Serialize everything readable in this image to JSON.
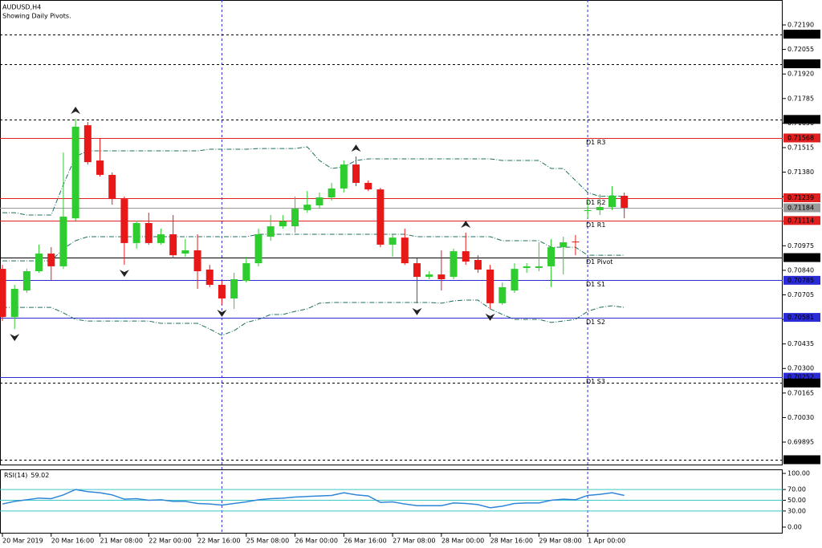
{
  "chart_data": [
    {
      "type": "candlestick",
      "title": "AUDUSD,H4",
      "subtitle": "Showing Daily Pivots.",
      "categories": [
        "20 Mar 2019",
        null,
        null,
        null,
        "20 Mar 16:00",
        null,
        null,
        null,
        "21 Mar 08:00",
        null,
        null,
        null,
        "22 Mar 00:00",
        null,
        null,
        null,
        "22 Mar 16:00",
        null,
        null,
        null,
        "25 Mar 08:00",
        null,
        null,
        null,
        "26 Mar 00:00",
        null,
        null,
        null,
        "26 Mar 16:00",
        null,
        null,
        null,
        "27 Mar 08:00",
        null,
        null,
        null,
        "28 Mar 00:00",
        null,
        null,
        null,
        "28 Mar 16:00",
        null,
        null,
        null,
        "29 Mar 08:00",
        null,
        null,
        null,
        "1 Apr 00:00",
        null,
        null,
        null
      ],
      "open": [
        0.70848,
        0.70583,
        0.70729,
        0.70835,
        0.70932,
        0.70862,
        0.71126,
        0.71638,
        0.71444,
        0.71365,
        0.71232,
        0.7099,
        0.711,
        0.7099,
        0.71038,
        0.70932,
        0.7095,
        0.70844,
        0.7076,
        0.70685,
        0.70782,
        0.70879,
        0.71025,
        0.71082,
        0.71082,
        0.71171,
        0.71197,
        0.71241,
        0.7129,
        0.71422,
        0.71321,
        0.71285,
        0.70981,
        0.7102,
        0.70879,
        0.70804,
        0.70817,
        0.70804,
        0.70945,
        0.70897,
        0.70844,
        0.70659,
        0.70729,
        0.70853,
        0.70853,
        0.70862,
        0.70967,
        0.70998,
        0.71166,
        0.71171,
        0.71188,
        0.7125
      ],
      "high": [
        0.7087,
        0.7076,
        0.70848,
        0.70981,
        0.70967,
        0.71488,
        0.71674,
        0.71656,
        0.71568,
        0.71378,
        0.71246,
        0.71113,
        0.71157,
        0.71069,
        0.71144,
        0.71012,
        0.71038,
        0.7087,
        0.70782,
        0.70826,
        0.70915,
        0.71069,
        0.71144,
        0.71144,
        0.71246,
        0.71276,
        0.71268,
        0.71321,
        0.71444,
        0.71466,
        0.71334,
        0.71294,
        0.71038,
        0.71069,
        0.70906,
        0.70835,
        0.7095,
        0.70959,
        0.71047,
        0.70923,
        0.7087,
        0.70773,
        0.70879,
        0.70879,
        0.70994,
        0.71012,
        0.71025,
        0.71034,
        0.71232,
        0.71259,
        0.71303,
        0.71268
      ],
      "low": [
        0.70561,
        0.70517,
        0.70716,
        0.70826,
        0.70782,
        0.70848,
        0.71113,
        0.71422,
        0.71356,
        0.71201,
        0.7087,
        0.70959,
        0.70981,
        0.70981,
        0.70906,
        0.70915,
        0.70738,
        0.70747,
        0.7065,
        0.70628,
        0.70773,
        0.70862,
        0.71003,
        0.71069,
        0.71047,
        0.71157,
        0.71179,
        0.71223,
        0.71268,
        0.71303,
        0.71276,
        0.70967,
        0.70915,
        0.7087,
        0.70659,
        0.70791,
        0.70729,
        0.70791,
        0.7087,
        0.70826,
        0.70628,
        0.7065,
        0.70716,
        0.70826,
        0.70835,
        0.70747,
        0.70817,
        0.70923,
        0.71126,
        0.71144,
        0.71171,
        0.71126
      ],
      "close": [
        0.70583,
        0.70738,
        0.70835,
        0.70932,
        0.70862,
        0.71135,
        0.7163,
        0.71435,
        0.71365,
        0.71232,
        0.7099,
        0.711,
        0.7099,
        0.71038,
        0.70923,
        0.7095,
        0.70835,
        0.7076,
        0.70685,
        0.70791,
        0.70879,
        0.71038,
        0.71082,
        0.71109,
        0.71179,
        0.71201,
        0.71241,
        0.7129,
        0.71422,
        0.71321,
        0.71285,
        0.70981,
        0.7102,
        0.70879,
        0.70804,
        0.70817,
        0.70791,
        0.70945,
        0.70888,
        0.70844,
        0.70659,
        0.70747,
        0.70848,
        0.70862,
        0.70862,
        0.70967,
        0.70994,
        0.70994,
        0.71171,
        0.71188,
        0.7125,
        0.71184
      ],
      "up_color": "#2ecc2e",
      "down_color": "#e81818",
      "envelopes": {
        "color": "#1f6f5f",
        "upper": [
          0.71157,
          0.71157,
          0.71144,
          0.71144,
          0.71144,
          0.71312,
          0.71466,
          0.71497,
          0.71497,
          0.71497,
          0.71497,
          0.71497,
          0.71497,
          0.71497,
          0.71497,
          0.71497,
          0.71497,
          0.71506,
          0.71506,
          0.71506,
          0.71506,
          0.7151,
          0.7151,
          0.7151,
          0.7151,
          0.71519,
          0.71444,
          0.714,
          0.71409,
          0.71444,
          0.71453,
          0.71453,
          0.71453,
          0.71453,
          0.71453,
          0.71453,
          0.71453,
          0.71453,
          0.71453,
          0.71453,
          0.71453,
          0.71444,
          0.71444,
          0.71444,
          0.71444,
          0.714,
          0.714,
          0.71334,
          0.71268,
          0.71246,
          0.7125,
          0.71246
        ],
        "middle": [
          0.70892,
          0.70892,
          0.70892,
          0.70892,
          0.70892,
          0.70959,
          0.71003,
          0.71025,
          0.71025,
          0.71025,
          0.71025,
          0.71025,
          0.71025,
          0.71025,
          0.71025,
          0.71025,
          0.71025,
          0.71025,
          0.71025,
          0.71025,
          0.71025,
          0.71038,
          0.71038,
          0.71038,
          0.71038,
          0.71038,
          0.71038,
          0.71038,
          0.71038,
          0.71038,
          0.71038,
          0.71038,
          0.71038,
          0.71038,
          0.71025,
          0.71025,
          0.71025,
          0.71025,
          0.71025,
          0.71025,
          0.71025,
          0.71003,
          0.71003,
          0.71003,
          0.71003,
          0.70967,
          0.70967,
          0.70967,
          0.70923,
          0.70923,
          0.70923,
          0.70923
        ],
        "lower": [
          0.70636,
          0.70636,
          0.70636,
          0.70636,
          0.70636,
          0.70606,
          0.7057,
          0.70561,
          0.70561,
          0.70561,
          0.70561,
          0.70561,
          0.70561,
          0.70548,
          0.70548,
          0.70548,
          0.70548,
          0.70517,
          0.70482,
          0.70508,
          0.70553,
          0.7057,
          0.70597,
          0.70597,
          0.70614,
          0.70628,
          0.70659,
          0.70663,
          0.70663,
          0.70663,
          0.70663,
          0.70663,
          0.70663,
          0.70663,
          0.70663,
          0.70663,
          0.70659,
          0.70672,
          0.70676,
          0.70676,
          0.70628,
          0.70597,
          0.7057,
          0.7057,
          0.7057,
          0.70553,
          0.70561,
          0.7057,
          0.70614,
          0.70636,
          0.70645,
          0.70636
        ]
      },
      "fractals": {
        "up": [
          6,
          29,
          38
        ],
        "down": [
          1,
          10,
          18,
          34,
          40
        ]
      },
      "separators": [
        18,
        48
      ],
      "ylim": [
        0.69767,
        0.72327
      ],
      "yticks": [
        {
          "value": 0.69895,
          "label": "0.69895"
        },
        {
          "value": 0.7003,
          "label": "0.70030"
        },
        {
          "value": 0.70165,
          "label": "0.70165"
        },
        {
          "value": 0.703,
          "label": "0.70300"
        },
        {
          "value": 0.70435,
          "label": "0.70435"
        },
        {
          "value": 0.7057,
          "label": "0.70570"
        },
        {
          "value": 0.70705,
          "label": "0.70705"
        },
        {
          "value": 0.7084,
          "label": "0.70840"
        },
        {
          "value": 0.70975,
          "label": "0.70975"
        },
        {
          "value": 0.7111,
          "label": "0.71110"
        },
        {
          "value": 0.71245,
          "label": "0.71245"
        },
        {
          "value": 0.7138,
          "label": "0.71380"
        },
        {
          "value": 0.71515,
          "label": "0.71515"
        },
        {
          "value": 0.7165,
          "label": "0.71650"
        },
        {
          "value": 0.71785,
          "label": "0.71785"
        },
        {
          "value": 0.7192,
          "label": "0.71920"
        },
        {
          "value": 0.72055,
          "label": "0.72055"
        },
        {
          "value": 0.7219,
          "label": "0.72190"
        }
      ],
      "hlines": [
        {
          "value": 0.72139,
          "label": "0.72139",
          "color": "#000000",
          "style": "dashed"
        },
        {
          "value": 0.71976,
          "label": "0.71976",
          "color": "#000000",
          "style": "dashed"
        },
        {
          "value": 0.7167,
          "label": "0.71670",
          "color": "#000000",
          "style": "dashed"
        },
        {
          "value": 0.71568,
          "label": "0.71568",
          "name": "D1 R3",
          "color": "#e02020",
          "style": "solid"
        },
        {
          "value": 0.71239,
          "label": "0.71239",
          "name": "D1 R2",
          "color": "#e02020",
          "style": "solid"
        },
        {
          "value": 0.71184,
          "label": "0.71184",
          "color": "#9a9a9a",
          "style": "solid"
        },
        {
          "value": 0.71114,
          "label": "0.71114",
          "name": "D1 R1",
          "color": "#e02020",
          "style": "solid"
        },
        {
          "value": 0.7091,
          "label": "0.70910",
          "name": "D1 Pivot",
          "color": "#000000",
          "style": "solid"
        },
        {
          "value": 0.70785,
          "label": "0.70785",
          "name": "D1 S1",
          "color": "#2b2bd6",
          "style": "solid"
        },
        {
          "value": 0.70581,
          "label": "0.70581",
          "name": "D1 S2",
          "color": "#2b2bd6",
          "style": "solid"
        },
        {
          "value": 0.70252,
          "label": "0.70252",
          "name": "D1 S3",
          "color": "#2b2bd6",
          "style": "solid"
        },
        {
          "value": 0.7022,
          "label": "0.70220",
          "color": "#000000",
          "style": "dashed"
        },
        {
          "value": 0.69798,
          "label": "0.69798",
          "color": "#000000",
          "style": "dashed"
        }
      ]
    },
    {
      "type": "line",
      "label": "RSI(14)",
      "color": "#2f86d8",
      "values": [
        43,
        48,
        51,
        54,
        53,
        60,
        70,
        66,
        64,
        60,
        52,
        53,
        50,
        51,
        48,
        48,
        44,
        43,
        41,
        44,
        47,
        51,
        53,
        54,
        56,
        57,
        58,
        59,
        64,
        60,
        58,
        46,
        47,
        43,
        40,
        40,
        40,
        45,
        44,
        42,
        36,
        39,
        44,
        45,
        45,
        50,
        52,
        51,
        59,
        61,
        64,
        59.02
      ],
      "levels": [
        70,
        50,
        30
      ],
      "level_color": "#3cc8c8",
      "ylim": [
        -12,
        107.5
      ],
      "yticks": [
        {
          "value": 0,
          "label": "0.00"
        },
        {
          "value": 30,
          "label": "30.00"
        },
        {
          "value": 50,
          "label": "50.00"
        },
        {
          "value": 70,
          "label": "70.00"
        },
        {
          "value": 100,
          "label": "100.00"
        }
      ]
    }
  ]
}
